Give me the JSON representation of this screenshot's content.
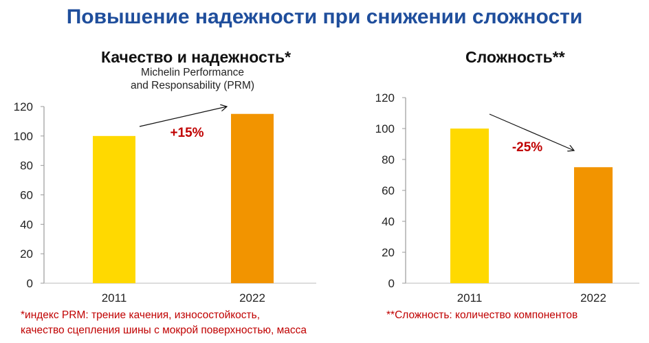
{
  "title": "Повышение надежности при снижении сложности",
  "colors": {
    "title": "#1f4e9c",
    "bar_2011": "#ffd900",
    "bar_2022": "#f29400",
    "annotation": "#c00000"
  },
  "chart_data": [
    {
      "type": "bar",
      "title": "Качество и надежность*",
      "subtitle_lines": [
        "Michelin Performance",
        "and Responsability (PRM)"
      ],
      "categories": [
        "2011",
        "2022"
      ],
      "values": [
        100,
        115
      ],
      "ylim": [
        0,
        120
      ],
      "yticks": [
        "0",
        "20",
        "40",
        "60",
        "80",
        "100",
        "120"
      ],
      "grid": false,
      "annotation": "+15%",
      "footnote_lines": [
        "*индекс PRM: трение качения, износостойкость,",
        "качество сцепления шины с мокрой поверхностью, масса"
      ]
    },
    {
      "type": "bar",
      "title": "Сложность**",
      "categories": [
        "2011",
        "2022"
      ],
      "values": [
        100,
        75
      ],
      "ylim": [
        0,
        120
      ],
      "yticks": [
        "0",
        "20",
        "40",
        "60",
        "80",
        "100",
        "120"
      ],
      "grid": false,
      "annotation": "-25%",
      "footnote_lines": [
        "**Сложность: количество компонентов"
      ]
    }
  ]
}
